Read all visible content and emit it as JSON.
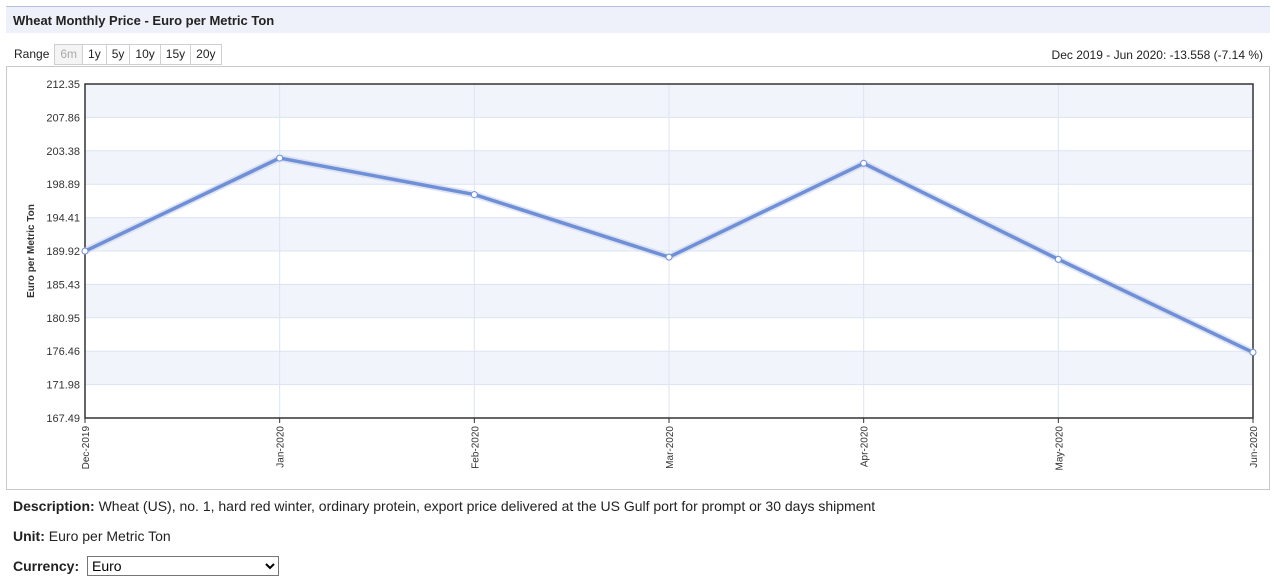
{
  "header": {
    "title": "Wheat Monthly Price - Euro per Metric Ton"
  },
  "range": {
    "label": "Range",
    "options": [
      "6m",
      "1y",
      "5y",
      "10y",
      "15y",
      "20y"
    ],
    "selected": "6m"
  },
  "change_summary": "Dec 2019 - Jun 2020: -13.558 (-7.14 %)",
  "chart_data": {
    "type": "line",
    "ylabel": "Euro per Metric Ton",
    "ylim": [
      167.49,
      212.35
    ],
    "yticks": [
      "212.35",
      "207.86",
      "203.38",
      "198.89",
      "194.41",
      "189.92",
      "185.43",
      "180.95",
      "176.46",
      "171.98",
      "167.49"
    ],
    "categories": [
      "Dec-2019",
      "Jan-2020",
      "Feb-2020",
      "Mar-2020",
      "Apr-2020",
      "May-2020",
      "Jun-2020"
    ],
    "series": [
      {
        "values": [
          189.9,
          202.4,
          197.5,
          189.1,
          201.7,
          188.8,
          176.3
        ]
      }
    ],
    "grid": true,
    "colors": {
      "line": "#6f8fd6",
      "band": "#f2f4fb",
      "grid": "#dce3f2",
      "axis": "#333333"
    }
  },
  "description": {
    "label": "Description:",
    "text": " Wheat (US), no. 1, hard red winter, ordinary protein, export price delivered at the US Gulf port for prompt or 30 days shipment"
  },
  "unit": {
    "label": "Unit:",
    "text": " Euro per Metric Ton"
  },
  "currency": {
    "label": "Currency:",
    "selected": "Euro"
  }
}
